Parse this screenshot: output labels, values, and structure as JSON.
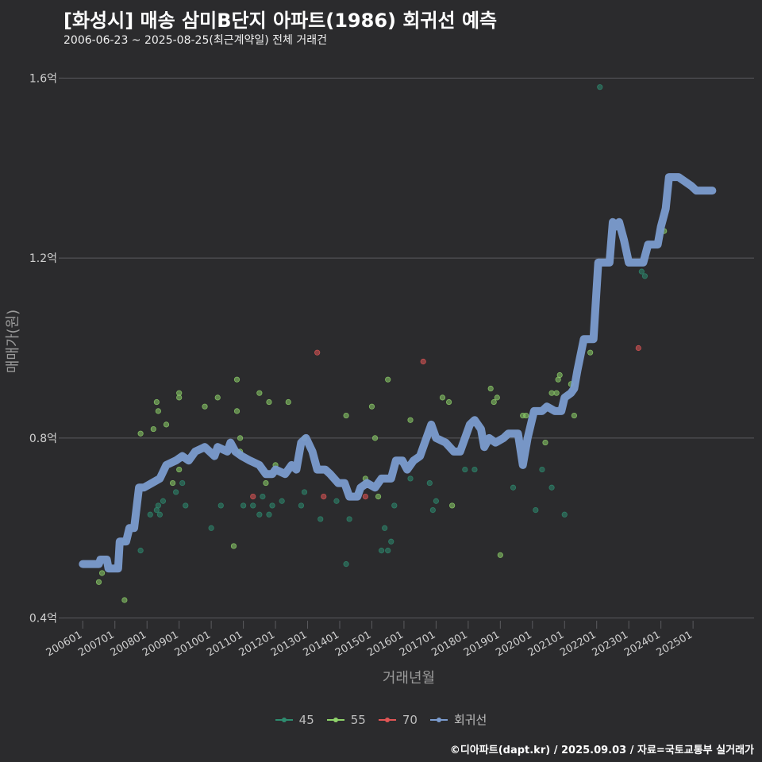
{
  "title": "[화성시] 매송 삼미B단지 아파트(1986) 회귀선 예측",
  "subtitle": "2006-06-23 ~ 2025-08-25(최근계약일) 전체 거래건",
  "footer": "©디아파트(dapt.kr) / 2025.09.03 / 자료=국토교통부 실거래가",
  "colors": {
    "background": "#2b2b2d",
    "grid": "#5a5a5e",
    "regression": "#7b9ccf",
    "s45": "#2e8b6f",
    "s55": "#8ed26a",
    "s70": "#e05555"
  },
  "chart_data": {
    "type": "scatter",
    "xlabel": "거래년월",
    "ylabel": "매매가(원)",
    "xlim": [
      2005.4,
      2026.9
    ],
    "ylim": [
      0.38,
      1.65
    ],
    "x_ticks": [
      {
        "value": 2006.0,
        "label": "200601"
      },
      {
        "value": 2007.0,
        "label": "200701"
      },
      {
        "value": 2008.0,
        "label": "200801"
      },
      {
        "value": 2009.0,
        "label": "200901"
      },
      {
        "value": 2010.0,
        "label": "201001"
      },
      {
        "value": 2011.0,
        "label": "201101"
      },
      {
        "value": 2012.0,
        "label": "201201"
      },
      {
        "value": 2013.0,
        "label": "201301"
      },
      {
        "value": 2014.0,
        "label": "201401"
      },
      {
        "value": 2015.0,
        "label": "201501"
      },
      {
        "value": 2016.0,
        "label": "201601"
      },
      {
        "value": 2017.0,
        "label": "201701"
      },
      {
        "value": 2018.0,
        "label": "201801"
      },
      {
        "value": 2019.0,
        "label": "201901"
      },
      {
        "value": 2020.0,
        "label": "202001"
      },
      {
        "value": 2021.0,
        "label": "202101"
      },
      {
        "value": 2022.0,
        "label": "202201"
      },
      {
        "value": 2023.0,
        "label": "202301"
      },
      {
        "value": 2024.0,
        "label": "202401"
      },
      {
        "value": 2025.0,
        "label": "202501"
      }
    ],
    "y_ticks": [
      {
        "value": 0.4,
        "label": "0.4억"
      },
      {
        "value": 0.8,
        "label": "0.8억"
      },
      {
        "value": 1.2,
        "label": "1.2억"
      },
      {
        "value": 1.6,
        "label": "1.6억"
      }
    ],
    "legend": [
      {
        "key": "s45",
        "label": "45",
        "kind": "point"
      },
      {
        "key": "s55",
        "label": "55",
        "kind": "point"
      },
      {
        "key": "s70",
        "label": "70",
        "kind": "point"
      },
      {
        "key": "regression",
        "label": "회귀선",
        "kind": "line"
      }
    ],
    "series": [
      {
        "name": "45",
        "key": "s45",
        "points": [
          [
            2007.3,
            0.57
          ],
          [
            2007.8,
            0.55
          ],
          [
            2008.1,
            0.63
          ],
          [
            2008.3,
            0.64
          ],
          [
            2008.35,
            0.65
          ],
          [
            2008.4,
            0.63
          ],
          [
            2008.5,
            0.66
          ],
          [
            2008.9,
            0.68
          ],
          [
            2009.1,
            0.7
          ],
          [
            2009.2,
            0.65
          ],
          [
            2010.0,
            0.6
          ],
          [
            2010.3,
            0.65
          ],
          [
            2011.0,
            0.65
          ],
          [
            2011.3,
            0.65
          ],
          [
            2011.5,
            0.63
          ],
          [
            2011.6,
            0.67
          ],
          [
            2011.8,
            0.63
          ],
          [
            2011.9,
            0.65
          ],
          [
            2012.2,
            0.66
          ],
          [
            2012.8,
            0.65
          ],
          [
            2012.9,
            0.68
          ],
          [
            2013.4,
            0.62
          ],
          [
            2013.9,
            0.66
          ],
          [
            2014.2,
            0.52
          ],
          [
            2014.3,
            0.62
          ],
          [
            2014.6,
            0.68
          ],
          [
            2015.3,
            0.55
          ],
          [
            2015.4,
            0.6
          ],
          [
            2015.5,
            0.55
          ],
          [
            2015.6,
            0.57
          ],
          [
            2015.7,
            0.65
          ],
          [
            2016.2,
            0.71
          ],
          [
            2016.8,
            0.7
          ],
          [
            2016.9,
            0.64
          ],
          [
            2017.0,
            0.66
          ],
          [
            2017.9,
            0.73
          ],
          [
            2018.2,
            0.73
          ],
          [
            2019.4,
            0.69
          ],
          [
            2020.1,
            0.64
          ],
          [
            2020.3,
            0.73
          ],
          [
            2020.6,
            0.69
          ],
          [
            2021.0,
            0.63
          ],
          [
            2022.1,
            1.58
          ],
          [
            2023.4,
            1.17
          ],
          [
            2023.5,
            1.16
          ]
        ]
      },
      {
        "name": "55",
        "key": "s55",
        "points": [
          [
            2006.5,
            0.48
          ],
          [
            2006.6,
            0.5
          ],
          [
            2007.3,
            0.44
          ],
          [
            2007.8,
            0.81
          ],
          [
            2008.2,
            0.82
          ],
          [
            2008.3,
            0.88
          ],
          [
            2008.35,
            0.86
          ],
          [
            2008.6,
            0.83
          ],
          [
            2008.8,
            0.7
          ],
          [
            2009.0,
            0.73
          ],
          [
            2009.0,
            0.89
          ],
          [
            2009.0,
            0.9
          ],
          [
            2009.8,
            0.87
          ],
          [
            2010.2,
            0.89
          ],
          [
            2010.7,
            0.56
          ],
          [
            2010.8,
            0.93
          ],
          [
            2010.8,
            0.86
          ],
          [
            2010.9,
            0.8
          ],
          [
            2010.9,
            0.77
          ],
          [
            2011.5,
            0.9
          ],
          [
            2011.7,
            0.7
          ],
          [
            2011.8,
            0.88
          ],
          [
            2012.0,
            0.74
          ],
          [
            2012.4,
            0.88
          ],
          [
            2012.9,
            0.8
          ],
          [
            2014.2,
            0.85
          ],
          [
            2014.8,
            0.71
          ],
          [
            2015.0,
            0.87
          ],
          [
            2015.1,
            0.8
          ],
          [
            2015.2,
            0.67
          ],
          [
            2015.5,
            0.93
          ],
          [
            2016.2,
            0.84
          ],
          [
            2017.2,
            0.89
          ],
          [
            2017.4,
            0.88
          ],
          [
            2017.5,
            0.65
          ],
          [
            2018.7,
            0.91
          ],
          [
            2018.8,
            0.88
          ],
          [
            2018.9,
            0.89
          ],
          [
            2019.0,
            0.54
          ],
          [
            2019.7,
            0.85
          ],
          [
            2019.8,
            0.85
          ],
          [
            2020.4,
            0.79
          ],
          [
            2020.6,
            0.9
          ],
          [
            2020.75,
            0.9
          ],
          [
            2020.8,
            0.93
          ],
          [
            2020.85,
            0.94
          ],
          [
            2021.2,
            0.92
          ],
          [
            2021.3,
            0.85
          ],
          [
            2021.8,
            0.99
          ],
          [
            2024.1,
            1.26
          ]
        ]
      },
      {
        "name": "70",
        "key": "s70",
        "points": [
          [
            2011.3,
            0.67
          ],
          [
            2013.3,
            0.99
          ],
          [
            2013.5,
            0.67
          ],
          [
            2014.8,
            0.67
          ],
          [
            2016.6,
            0.97
          ],
          [
            2023.3,
            1.0
          ]
        ]
      }
    ],
    "regression": {
      "name": "회귀선",
      "key": "regression",
      "points": [
        [
          2006.0,
          0.52
        ],
        [
          2006.5,
          0.52
        ],
        [
          2006.55,
          0.53
        ],
        [
          2006.75,
          0.53
        ],
        [
          2006.8,
          0.51
        ],
        [
          2007.1,
          0.51
        ],
        [
          2007.15,
          0.57
        ],
        [
          2007.35,
          0.57
        ],
        [
          2007.45,
          0.6
        ],
        [
          2007.6,
          0.6
        ],
        [
          2007.75,
          0.69
        ],
        [
          2007.9,
          0.69
        ],
        [
          2008.15,
          0.7
        ],
        [
          2008.4,
          0.71
        ],
        [
          2008.6,
          0.74
        ],
        [
          2008.9,
          0.75
        ],
        [
          2009.1,
          0.76
        ],
        [
          2009.3,
          0.75
        ],
        [
          2009.5,
          0.77
        ],
        [
          2009.8,
          0.78
        ],
        [
          2010.1,
          0.76
        ],
        [
          2010.2,
          0.78
        ],
        [
          2010.5,
          0.77
        ],
        [
          2010.6,
          0.79
        ],
        [
          2010.75,
          0.77
        ],
        [
          2010.95,
          0.76
        ],
        [
          2011.2,
          0.75
        ],
        [
          2011.5,
          0.74
        ],
        [
          2011.7,
          0.72
        ],
        [
          2011.9,
          0.72
        ],
        [
          2012.0,
          0.73
        ],
        [
          2012.3,
          0.72
        ],
        [
          2012.5,
          0.74
        ],
        [
          2012.65,
          0.73
        ],
        [
          2012.8,
          0.79
        ],
        [
          2012.95,
          0.8
        ],
        [
          2013.15,
          0.77
        ],
        [
          2013.3,
          0.73
        ],
        [
          2013.55,
          0.73
        ],
        [
          2013.7,
          0.72
        ],
        [
          2013.95,
          0.7
        ],
        [
          2014.15,
          0.7
        ],
        [
          2014.3,
          0.67
        ],
        [
          2014.55,
          0.67
        ],
        [
          2014.65,
          0.69
        ],
        [
          2014.85,
          0.7
        ],
        [
          2015.1,
          0.69
        ],
        [
          2015.3,
          0.71
        ],
        [
          2015.6,
          0.71
        ],
        [
          2015.75,
          0.75
        ],
        [
          2015.95,
          0.75
        ],
        [
          2016.1,
          0.73
        ],
        [
          2016.3,
          0.75
        ],
        [
          2016.5,
          0.76
        ],
        [
          2016.65,
          0.79
        ],
        [
          2016.85,
          0.83
        ],
        [
          2017.0,
          0.8
        ],
        [
          2017.3,
          0.79
        ],
        [
          2017.55,
          0.77
        ],
        [
          2017.75,
          0.77
        ],
        [
          2017.9,
          0.8
        ],
        [
          2018.05,
          0.83
        ],
        [
          2018.2,
          0.84
        ],
        [
          2018.4,
          0.82
        ],
        [
          2018.5,
          0.78
        ],
        [
          2018.65,
          0.8
        ],
        [
          2018.85,
          0.79
        ],
        [
          2019.1,
          0.8
        ],
        [
          2019.25,
          0.81
        ],
        [
          2019.55,
          0.81
        ],
        [
          2019.7,
          0.74
        ],
        [
          2019.85,
          0.8
        ],
        [
          2020.05,
          0.86
        ],
        [
          2020.3,
          0.86
        ],
        [
          2020.45,
          0.87
        ],
        [
          2020.7,
          0.86
        ],
        [
          2020.9,
          0.86
        ],
        [
          2021.0,
          0.89
        ],
        [
          2021.2,
          0.9
        ],
        [
          2021.3,
          0.91
        ],
        [
          2021.4,
          0.95
        ],
        [
          2021.6,
          1.02
        ],
        [
          2021.9,
          1.02
        ],
        [
          2022.05,
          1.19
        ],
        [
          2022.4,
          1.19
        ],
        [
          2022.5,
          1.28
        ],
        [
          2022.6,
          1.27
        ],
        [
          2022.7,
          1.28
        ],
        [
          2022.85,
          1.24
        ],
        [
          2023.0,
          1.19
        ],
        [
          2023.45,
          1.19
        ],
        [
          2023.6,
          1.23
        ],
        [
          2023.9,
          1.23
        ],
        [
          2024.0,
          1.27
        ],
        [
          2024.15,
          1.31
        ],
        [
          2024.25,
          1.38
        ],
        [
          2024.55,
          1.38
        ],
        [
          2024.75,
          1.37
        ],
        [
          2024.95,
          1.36
        ],
        [
          2025.1,
          1.35
        ],
        [
          2025.6,
          1.35
        ]
      ]
    }
  }
}
